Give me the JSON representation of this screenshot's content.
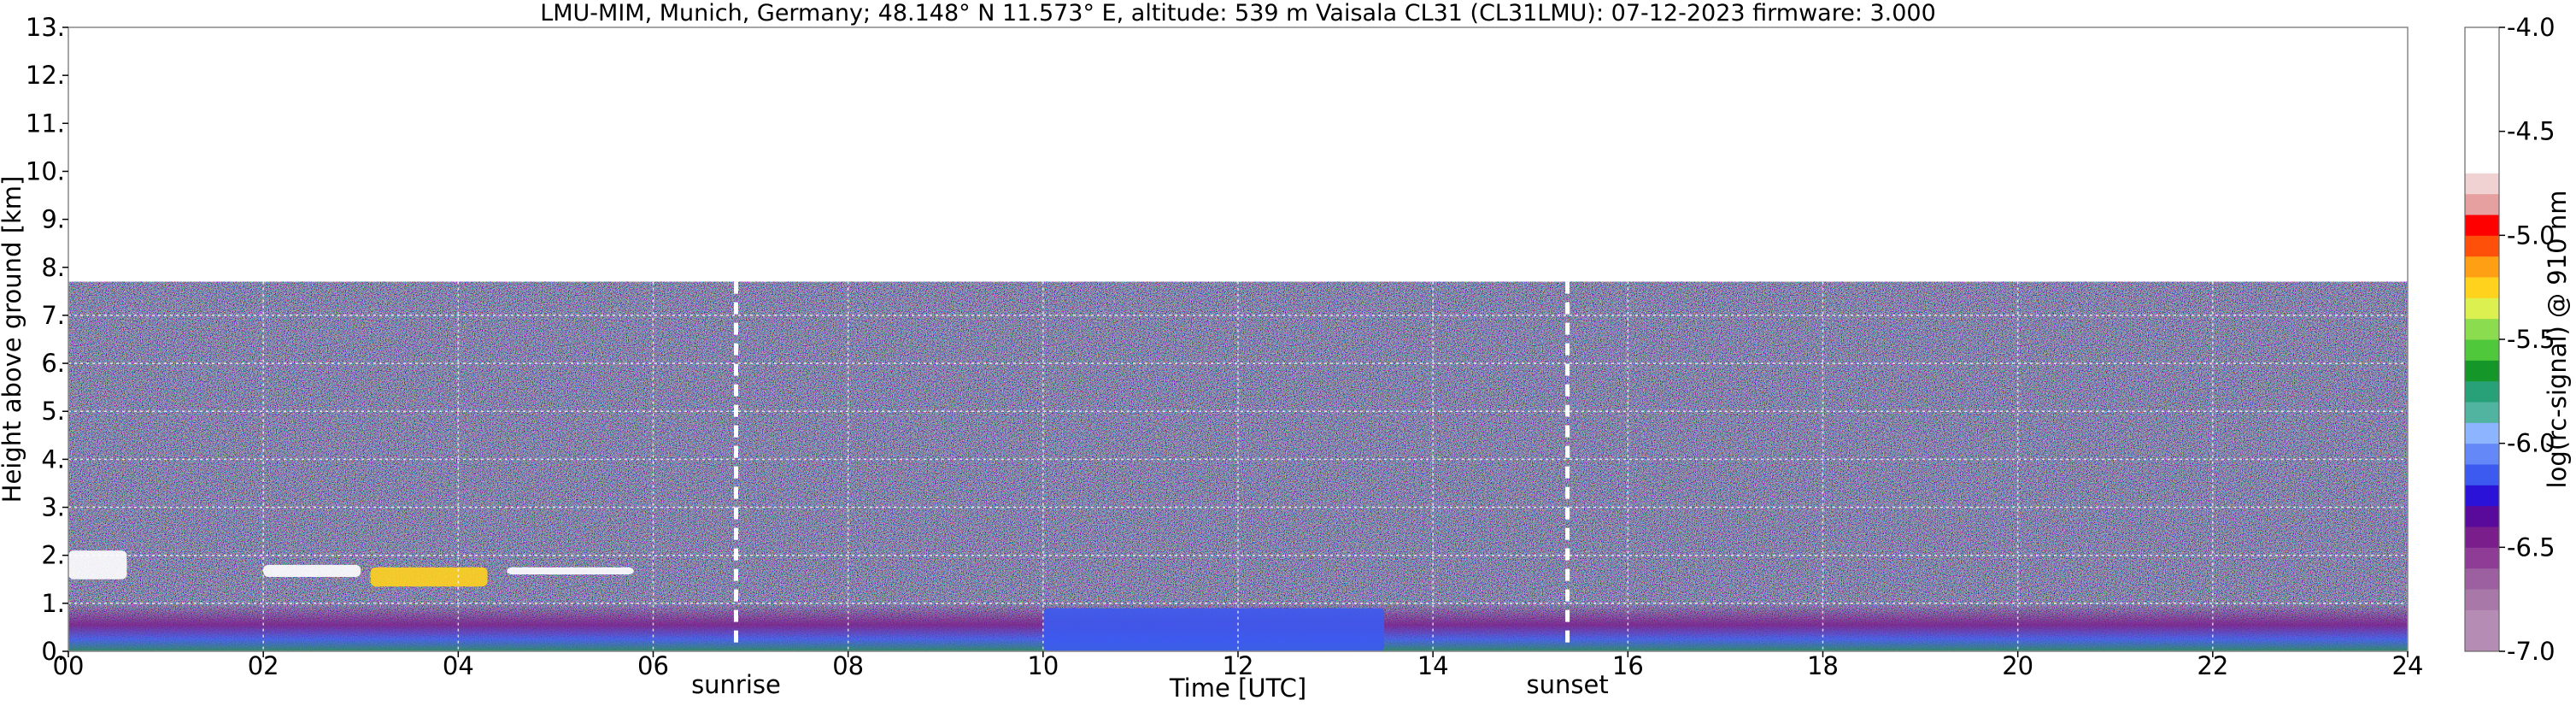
{
  "chart_data": {
    "type": "heatmap",
    "title": "LMU-MIM, Munich, Germany; 48.148° N 11.573° E, altitude: 539 m    Vaisala CL31 (CL31LMU): 07-12-2023    firmware: 3.000",
    "xlabel": "Time [UTC]",
    "ylabel": "Height above ground [km]",
    "xlim": [
      0,
      24
    ],
    "ylim": [
      0,
      13
    ],
    "x_ticks": [
      0,
      2,
      4,
      6,
      8,
      10,
      12,
      14,
      16,
      18,
      20,
      22,
      24
    ],
    "x_tick_labels": [
      "00",
      "02",
      "04",
      "06",
      "08",
      "10",
      "12",
      "14",
      "16",
      "18",
      "20",
      "22",
      "24"
    ],
    "y_ticks": [
      0,
      1,
      2,
      3,
      4,
      5,
      6,
      7,
      8,
      9,
      10,
      11,
      12,
      13
    ],
    "y_tick_labels": [
      "0.",
      "1.",
      "2.",
      "3.",
      "4.",
      "5.",
      "6.",
      "7.",
      "8.",
      "9.",
      "10.",
      "11.",
      "12.",
      "13."
    ],
    "grid": true,
    "data_top_km": 7.7,
    "annotations": [
      {
        "label": "sunrise",
        "x": 6.85
      },
      {
        "label": "sunset",
        "x": 15.38
      }
    ],
    "colorbar": {
      "label": "log(rc-signal) @ 910 nm",
      "range": [
        -7.0,
        -4.0
      ],
      "ticks": [
        -7.0,
        -6.5,
        -6.0,
        -5.5,
        -5.0,
        -4.5,
        -4.0
      ],
      "tick_labels": [
        "-7.0",
        "-6.5",
        "-6.0",
        "-5.5",
        "-5.0",
        "-4.5",
        "-4.0"
      ],
      "levels": [
        {
          "from": -7.0,
          "to": -6.8,
          "color": "#b48cb4"
        },
        {
          "from": -6.8,
          "to": -6.7,
          "color": "#a878a8"
        },
        {
          "from": -6.7,
          "to": -6.6,
          "color": "#9c5fa0"
        },
        {
          "from": -6.6,
          "to": -6.5,
          "color": "#8e3c96"
        },
        {
          "from": -6.5,
          "to": -6.4,
          "color": "#7a1e8c"
        },
        {
          "from": -6.4,
          "to": -6.3,
          "color": "#5a0a9a"
        },
        {
          "from": -6.3,
          "to": -6.2,
          "color": "#2a12d8"
        },
        {
          "from": -6.2,
          "to": -6.1,
          "color": "#3c5af0"
        },
        {
          "from": -6.1,
          "to": -6.0,
          "color": "#6488f8"
        },
        {
          "from": -6.0,
          "to": -5.9,
          "color": "#8cb4ff"
        },
        {
          "from": -5.9,
          "to": -5.8,
          "color": "#50b4a0"
        },
        {
          "from": -5.8,
          "to": -5.7,
          "color": "#28a078"
        },
        {
          "from": -5.7,
          "to": -5.6,
          "color": "#149628"
        },
        {
          "from": -5.6,
          "to": -5.5,
          "color": "#50c83c"
        },
        {
          "from": -5.5,
          "to": -5.4,
          "color": "#8cdc50"
        },
        {
          "from": -5.4,
          "to": -5.3,
          "color": "#dcf050"
        },
        {
          "from": -5.3,
          "to": -5.2,
          "color": "#ffd21e"
        },
        {
          "from": -5.2,
          "to": -5.1,
          "color": "#ffa014"
        },
        {
          "from": -5.1,
          "to": -5.0,
          "color": "#ff500a"
        },
        {
          "from": -5.0,
          "to": -4.9,
          "color": "#ff0000"
        },
        {
          "from": -4.9,
          "to": -4.8,
          "color": "#e6a0a0"
        },
        {
          "from": -4.8,
          "to": -4.7,
          "color": "#f0d2d2"
        },
        {
          "from": -4.7,
          "to": -4.0,
          "color": "#ffffff"
        }
      ]
    },
    "features": [
      {
        "name": "boundary layer aerosol",
        "x": [
          0,
          24
        ],
        "y": [
          0,
          0.8
        ],
        "value": -6.4
      },
      {
        "name": "cloud layer",
        "x": [
          0,
          0.6
        ],
        "y": [
          1.5,
          2.1
        ],
        "value": -4.5
      },
      {
        "name": "cloud layer",
        "x": [
          2.0,
          3.0
        ],
        "y": [
          1.55,
          1.8
        ],
        "value": -4.5
      },
      {
        "name": "cloud layer",
        "x": [
          3.1,
          4.3
        ],
        "y": [
          1.35,
          1.75
        ],
        "value": -5.2
      },
      {
        "name": "cloud layer",
        "x": [
          4.5,
          5.8
        ],
        "y": [
          1.6,
          1.75
        ],
        "value": -4.5
      },
      {
        "name": "mixing layer",
        "x": [
          10.0,
          13.5
        ],
        "y": [
          0,
          0.9
        ],
        "value": -6.1
      }
    ]
  }
}
